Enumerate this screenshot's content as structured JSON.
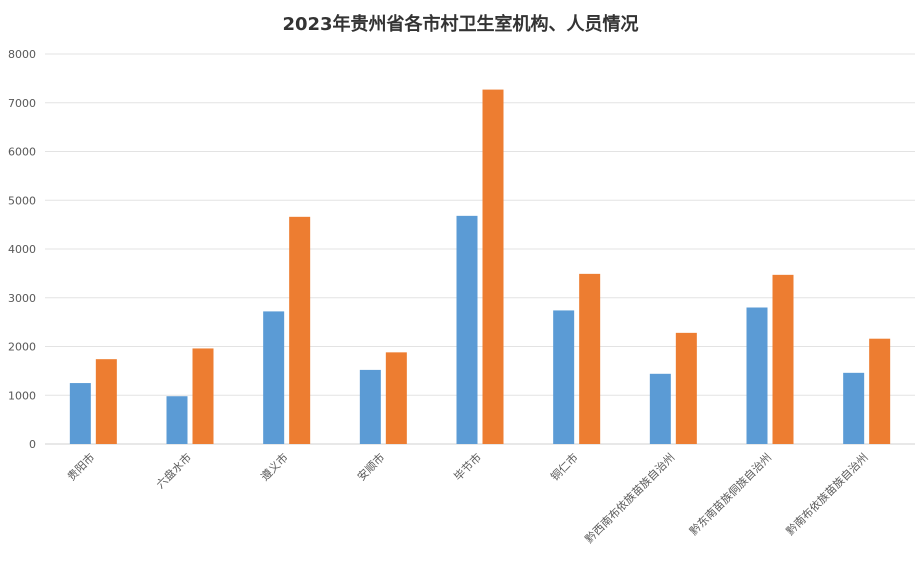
{
  "chart_data": {
    "type": "bar",
    "title": "2023年贵州省各市村卫生室机构、人员情况",
    "categories": [
      "贵阳市",
      "六盘水市",
      "遵义市",
      "安顺市",
      "毕节市",
      "铜仁市",
      "黔西南布依族苗族自治州",
      "黔东南苗族侗族自治州",
      "黔南布依族苗族自治州"
    ],
    "series": [
      {
        "values": [
          1250,
          980,
          2720,
          1520,
          4680,
          2740,
          1440,
          2800,
          1460
        ],
        "color": "#5B9BD5"
      },
      {
        "values": [
          1740,
          1960,
          4660,
          1880,
          7270,
          3490,
          2280,
          3470,
          2160
        ],
        "color": "#ED7D31"
      }
    ],
    "ylim": [
      0,
      8000
    ],
    "yticks": [
      0,
      1000,
      2000,
      3000,
      4000,
      5000,
      6000,
      7000,
      8000
    ],
    "grid": true,
    "legend": "none"
  }
}
